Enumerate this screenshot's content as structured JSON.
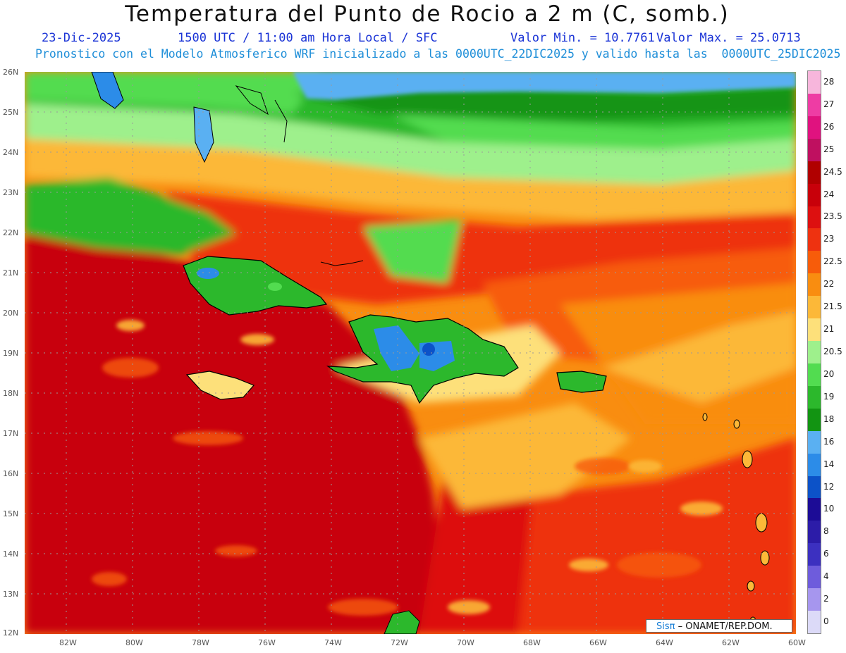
{
  "title": "Temperatura del Punto de Rocio a 2 m (C, somb.)",
  "header": {
    "date": "23-Dic-2025",
    "time": "1500 UTC / 11:00 am Hora Local / SFC",
    "min": "Valor Min. = 10.7761",
    "max": "Valor Max. = 25.0713",
    "model": "Pronostico con el Modelo Atmosferico WRF inicializado a las 0000UTC_22DIC2025 y valido hasta las  0000UTC_25DIC2025"
  },
  "map": {
    "lon_range": [
      -83.25,
      -60
    ],
    "lat_range": [
      12,
      26
    ],
    "lat_labels": [
      "26N",
      "25N",
      "24N",
      "23N",
      "22N",
      "21N",
      "20N",
      "19N",
      "18N",
      "17N",
      "16N",
      "15N",
      "14N",
      "13N",
      "12N"
    ],
    "lon_labels": [
      "82W",
      "80W",
      "78W",
      "76W",
      "74W",
      "72W",
      "70W",
      "68W",
      "66W",
      "64W",
      "62W",
      "60W"
    ]
  },
  "colorbar": {
    "labels": [
      "28",
      "27",
      "26",
      "25",
      "24.5",
      "24",
      "23.5",
      "23",
      "22.5",
      "22",
      "21.5",
      "21",
      "20.5",
      "20",
      "19",
      "18",
      "16",
      "14",
      "12",
      "10",
      "8",
      "6",
      "4",
      "2",
      "0"
    ],
    "colors": [
      "#f7b6dc",
      "#ee3ca4",
      "#e0127f",
      "#bf1060",
      "#b00000",
      "#c8000a",
      "#dd1010",
      "#ee3210",
      "#f75c0a",
      "#f98d10",
      "#fcb838",
      "#fde07a",
      "#9ef08c",
      "#52dc50",
      "#2cb82c",
      "#129412",
      "#5ab0f2",
      "#2c8ce8",
      "#0c52c8",
      "#1c0c96",
      "#2c1ca8",
      "#3c30c0",
      "#6e5cdc",
      "#a696ee",
      "#dcdaf8"
    ]
  },
  "credit": {
    "brand": "Sisπ",
    "text": "– ONAMET/REP.DOM."
  }
}
